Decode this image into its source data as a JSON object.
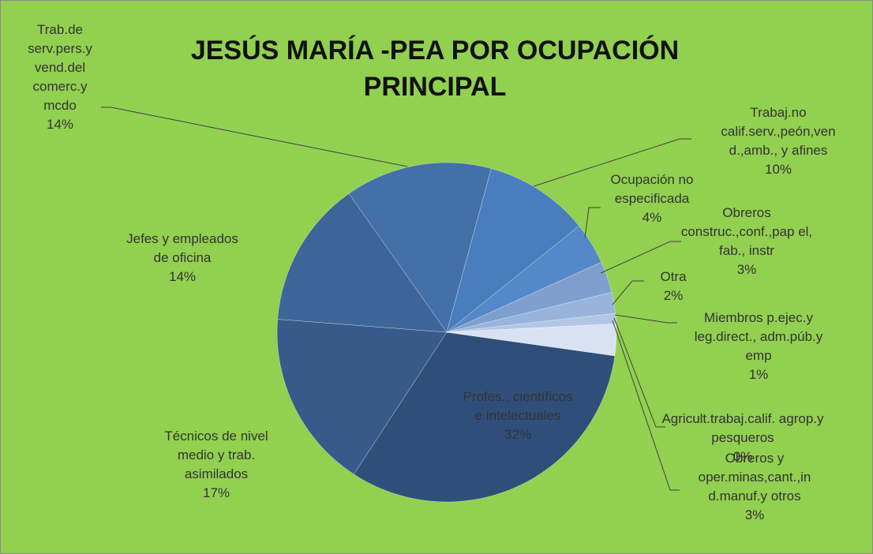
{
  "chart_data": {
    "type": "pie",
    "title": "JESÚS MARÍA -PEA POR OCUPACIÓN PRINCIPAL",
    "categories": [
      "Profes., científicos e intelectuales",
      "Técnicos de nivel medio y trab. asimilados",
      "Jefes y empleados de oficina",
      "Trab.de serv.pers.y vend.del comerc.y mcdo",
      "Trabaj.no calif.serv.,peón,ven d.,amb., y afines",
      "Ocupación no especificada",
      "Obreros construc.,conf.,pap el, fab., instr",
      "Otra",
      "Miembros p.ejec.y leg.direct., adm.púb.y emp",
      "Agricult.trabaj.calif. agrop.y pesqueros",
      "Obreros y oper.minas,cant.,in d.manuf.y otros"
    ],
    "values": [
      32,
      17,
      14,
      14,
      10,
      4,
      3,
      2,
      1,
      0,
      3
    ],
    "value_labels": [
      "32%",
      "17%",
      "14%",
      "14%",
      "10%",
      "4%",
      "3%",
      "2%",
      "1%",
      "0%",
      "3%"
    ],
    "colors": [
      "#2f4f7a",
      "#375a8b",
      "#3e6598",
      "#4470a8",
      "#4a7dbd",
      "#5588c8",
      "#7f9fd0",
      "#98b3dc",
      "#b3c6e6",
      "#c8d6ee",
      "#d9e2f3"
    ]
  }
}
